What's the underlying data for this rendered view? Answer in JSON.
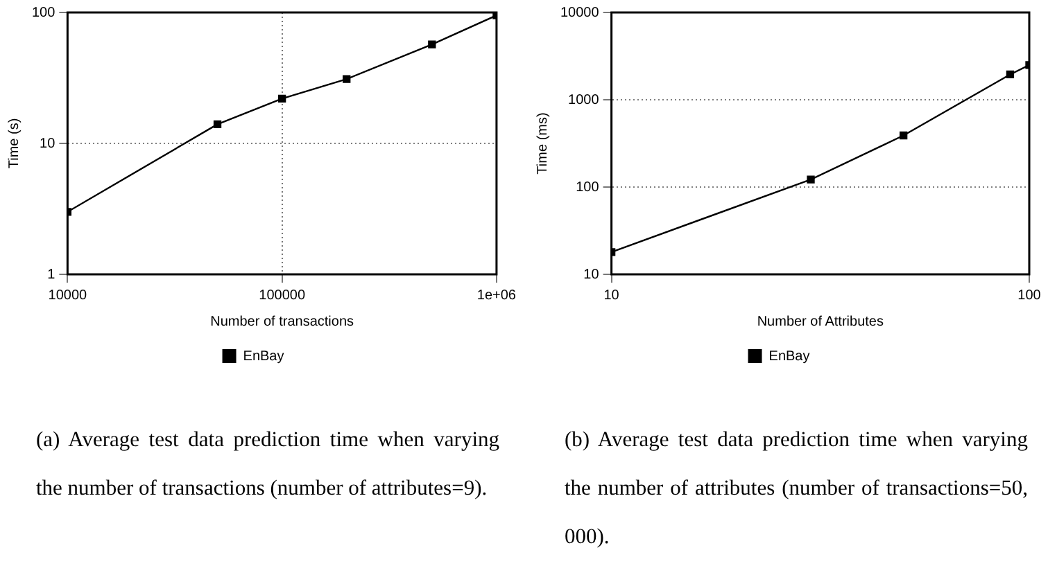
{
  "chart_data": [
    {
      "type": "line",
      "xlabel": "Number of transactions",
      "ylabel": "Time (s)",
      "log": "xy",
      "grid": true,
      "legend": "bottom",
      "marker": "square",
      "line_style": "solid",
      "x": [
        10000,
        50000,
        100000,
        200000,
        500000,
        1000000
      ],
      "series": [
        {
          "name": "EnBay",
          "color": "#000000",
          "values": [
            3,
            14,
            22,
            31,
            57,
            95
          ]
        }
      ],
      "xlim": [
        10000,
        1000000
      ],
      "xticks": [
        10000,
        100000,
        {
          "value": 1000000,
          "label": "1e+06"
        }
      ],
      "ylim": [
        1,
        100
      ],
      "yticks": [
        1,
        10,
        100
      ],
      "annotations": [
        "(a) Average test data prediction time when varying the number of transactions (number of attributes=9)."
      ]
    },
    {
      "type": "line",
      "xlabel": "Number of Attributes",
      "ylabel": "Time (ms)",
      "log": "xy",
      "grid": true,
      "legend": "bottom",
      "marker": "square",
      "line_style": "solid",
      "x": [
        10,
        30,
        50,
        90,
        100
      ],
      "series": [
        {
          "name": "EnBay",
          "color": "#000000",
          "values": [
            18,
            122,
            390,
            1950,
            2500
          ]
        }
      ],
      "xlim": [
        10,
        100
      ],
      "xticks": [
        10,
        100
      ],
      "ylim": [
        10,
        10000
      ],
      "yticks": [
        10,
        100,
        1000,
        10000
      ],
      "annotations": [
        "(b) Average test data prediction time when varying the number of attributes (number of transactions=50, 000)."
      ]
    }
  ]
}
